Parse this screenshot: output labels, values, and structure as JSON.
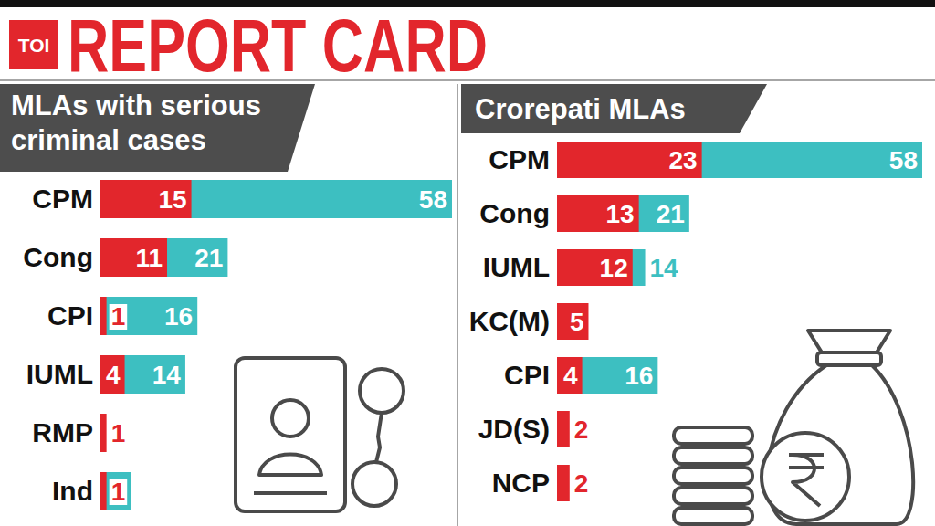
{
  "header": {
    "title": "REPORT CARD",
    "logo": "TOI"
  },
  "chart_data": [
    {
      "type": "bar",
      "orientation": "horizontal",
      "title": "MLAs with serious criminal cases",
      "categories": [
        "CPM",
        "Cong",
        "CPI",
        "IUML",
        "RMP",
        "Ind"
      ],
      "series": [
        {
          "color": "#3dbfc1",
          "values": [
            58,
            21,
            16,
            14,
            null,
            5
          ]
        },
        {
          "color": "#e2262c",
          "values": [
            15,
            11,
            1,
            4,
            1,
            1
          ]
        }
      ],
      "xlim": [
        0,
        58
      ],
      "stacked": false,
      "data_labels": true,
      "tick_labels": false
    },
    {
      "type": "bar",
      "orientation": "horizontal",
      "title": "Crorepati MLAs",
      "categories": [
        "CPM",
        "Cong",
        "IUML",
        "KC(M)",
        "CPI",
        "JD(S)",
        "NCP"
      ],
      "series": [
        {
          "color": "#3dbfc1",
          "values": [
            58,
            21,
            14,
            null,
            16,
            null,
            null
          ]
        },
        {
          "color": "#e2262c",
          "values": [
            23,
            13,
            12,
            5,
            4,
            2,
            2
          ]
        }
      ],
      "xlim": [
        0,
        58
      ],
      "stacked": false,
      "data_labels": true,
      "tick_labels": false
    }
  ]
}
